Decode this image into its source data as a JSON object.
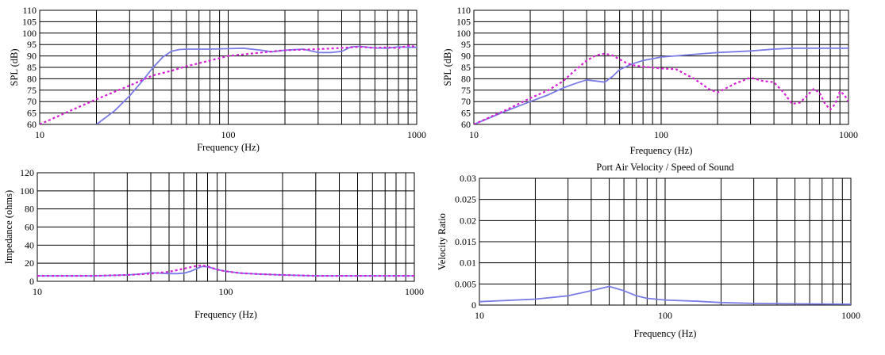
{
  "colors": {
    "solid": "#7b7be6",
    "dashed": "#d61fd6",
    "grid": "#000000",
    "background": "#ffffff"
  },
  "chart_data": [
    {
      "type": "line",
      "title": "",
      "xlabel": "Frequency (Hz)",
      "ylabel": "SPL (dB)",
      "xscale": "log",
      "xlim": [
        10,
        1000
      ],
      "ylim": [
        60,
        110
      ],
      "yticks": [
        60,
        65,
        70,
        75,
        80,
        85,
        90,
        95,
        100,
        105,
        110
      ],
      "xtick_labels": [
        "10",
        "100",
        "1000"
      ],
      "grid": true,
      "series": [
        {
          "style": "solid",
          "x": [
            20,
            25,
            30,
            35,
            40,
            45,
            50,
            55,
            60,
            70,
            80,
            100,
            120,
            150,
            170,
            200,
            250,
            300,
            350,
            400,
            450,
            500,
            600,
            700,
            800,
            900,
            1000
          ],
          "y": [
            60,
            66,
            72.5,
            79,
            85,
            89.5,
            92,
            92.8,
            93,
            93,
            93,
            93.2,
            93.4,
            92.5,
            91.8,
            92.5,
            93,
            91.5,
            91.5,
            92,
            94,
            94.2,
            93.5,
            93.4,
            94,
            93.8,
            93.8
          ]
        },
        {
          "style": "dashed",
          "x": [
            10,
            15,
            20,
            30,
            40,
            50,
            60,
            70,
            80,
            100,
            150,
            200,
            300,
            400,
            500,
            600,
            700,
            800,
            900,
            1000
          ],
          "y": [
            60,
            66.5,
            71,
            77,
            81.5,
            83.5,
            85.5,
            86.8,
            88,
            90,
            91.5,
            92.5,
            93,
            93.5,
            94,
            93.5,
            93.8,
            93.4,
            94.5,
            94
          ]
        }
      ]
    },
    {
      "type": "line",
      "title": "",
      "xlabel": "Frequency (Hz)",
      "ylabel": "SPL (dB)",
      "xscale": "log",
      "xlim": [
        10,
        1000
      ],
      "ylim": [
        60,
        110
      ],
      "yticks": [
        60,
        65,
        70,
        75,
        80,
        85,
        90,
        95,
        100,
        105,
        110
      ],
      "xtick_labels": [
        "10",
        "100",
        "1000"
      ],
      "grid": true,
      "series": [
        {
          "style": "solid",
          "x": [
            10,
            15,
            20,
            25,
            30,
            35,
            40,
            45,
            50,
            55,
            60,
            70,
            80,
            100,
            150,
            200,
            300,
            400,
            500,
            700,
            1000
          ],
          "y": [
            60,
            66,
            70,
            73,
            76,
            78,
            79.5,
            79,
            78.5,
            81,
            84,
            86.5,
            88,
            89.5,
            90.7,
            91.5,
            92.2,
            93,
            93.4,
            93.4,
            93.4
          ]
        },
        {
          "style": "dashed",
          "x": [
            10,
            15,
            20,
            25,
            30,
            35,
            40,
            45,
            50,
            55,
            60,
            65,
            70,
            80,
            100,
            120,
            150,
            180,
            200,
            250,
            300,
            350,
            400,
            450,
            500,
            550,
            600,
            650,
            700,
            750,
            800,
            850,
            900,
            950,
            1000
          ],
          "y": [
            60,
            66.5,
            71.5,
            75,
            79,
            84,
            88,
            90.3,
            91,
            90.2,
            88.5,
            87,
            86,
            85.3,
            84.5,
            84.2,
            80,
            75.5,
            74,
            78,
            80.5,
            79,
            78.5,
            74,
            69,
            69.5,
            72.5,
            75.5,
            74,
            69,
            66.5,
            69,
            74.5,
            73,
            70
          ]
        }
      ]
    },
    {
      "type": "line",
      "title": "",
      "xlabel": "Frequency (Hz)",
      "ylabel": "Impedance (ohms)",
      "xscale": "log",
      "xlim": [
        10,
        1000
      ],
      "ylim": [
        0,
        120
      ],
      "yticks": [
        0,
        20,
        40,
        60,
        80,
        100,
        120
      ],
      "xtick_labels": [
        "10",
        "100",
        "1000"
      ],
      "grid": true,
      "series": [
        {
          "style": "solid",
          "x": [
            10,
            20,
            30,
            35,
            40,
            45,
            50,
            55,
            60,
            65,
            70,
            75,
            80,
            90,
            100,
            120,
            150,
            200,
            300,
            1000
          ],
          "y": [
            6,
            6,
            7,
            8,
            9.5,
            9,
            8.5,
            8.5,
            9,
            11,
            14,
            16.5,
            16,
            13,
            11,
            9,
            8,
            7,
            6,
            6
          ]
        },
        {
          "style": "dashed",
          "x": [
            10,
            20,
            30,
            40,
            50,
            60,
            70,
            75,
            80,
            90,
            100,
            120,
            150,
            200,
            300,
            1000
          ],
          "y": [
            6,
            6,
            7,
            8.5,
            10.5,
            14,
            17,
            17.5,
            16.5,
            13,
            11,
            9,
            8,
            7,
            6,
            6
          ]
        }
      ]
    },
    {
      "type": "line",
      "title": "Port Air Velocity / Speed of Sound",
      "xlabel": "Frequency (Hz)",
      "ylabel": "Velocity Ratio",
      "xscale": "log",
      "xlim": [
        10,
        1000
      ],
      "ylim": [
        0,
        0.03
      ],
      "yticks": [
        0,
        0.005,
        0.01,
        0.015,
        0.02,
        0.025,
        0.03
      ],
      "ytick_labels": [
        "0",
        "0.005",
        "0.01",
        "0.015",
        "0.02",
        "0.025",
        "0.03"
      ],
      "xtick_labels": [
        "10",
        "100",
        "1000"
      ],
      "grid": true,
      "series": [
        {
          "style": "solid",
          "x": [
            10,
            20,
            30,
            40,
            50,
            60,
            70,
            80,
            100,
            150,
            200,
            300,
            500,
            1000
          ],
          "y": [
            0.0008,
            0.0014,
            0.0022,
            0.0034,
            0.0044,
            0.0034,
            0.0022,
            0.0016,
            0.0012,
            0.0009,
            0.0006,
            0.0004,
            0.0003,
            0.0002
          ]
        }
      ]
    }
  ]
}
